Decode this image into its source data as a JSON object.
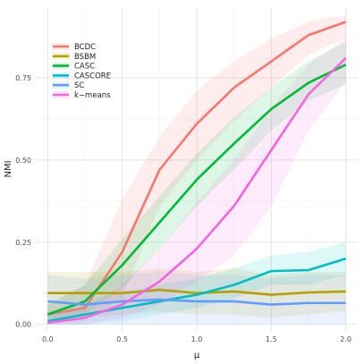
{
  "chart_data": {
    "type": "line",
    "xlabel": "μ",
    "ylabel": "NMI",
    "xlim": [
      -0.08,
      2.08
    ],
    "ylim": [
      -0.02,
      0.965
    ],
    "x_ticks": [
      0.0,
      0.5,
      1.0,
      1.5,
      2.0
    ],
    "x_tick_labels": [
      "0.0",
      "0.5",
      "1.0",
      "1.5",
      "2.0"
    ],
    "y_ticks": [
      0.0,
      0.25,
      0.5,
      0.75
    ],
    "y_tick_labels": [
      "0.00",
      "0.25",
      "0.50",
      "0.75"
    ],
    "grid": true,
    "legend_position": "top-left",
    "x": [
      0,
      0.25,
      0.5,
      0.75,
      1.0,
      1.25,
      1.5,
      1.75,
      2.0
    ],
    "series": [
      {
        "name": "BCDC",
        "color": "#F8766D",
        "values": [
          0.03,
          0.05,
          0.22,
          0.47,
          0.61,
          0.72,
          0.8,
          0.88,
          0.92
        ],
        "lower": [
          0.0,
          0.01,
          0.08,
          0.36,
          0.5,
          0.62,
          0.72,
          0.82,
          0.87
        ],
        "upper": [
          0.06,
          0.12,
          0.38,
          0.57,
          0.71,
          0.8,
          0.87,
          0.92,
          0.94
        ]
      },
      {
        "name": "BSBM",
        "color": "#B79F00",
        "values": [
          0.095,
          0.095,
          0.095,
          0.105,
          0.095,
          0.1,
          0.09,
          0.097,
          0.1
        ],
        "lower": [
          0.02,
          0.02,
          0.03,
          0.04,
          0.03,
          0.03,
          0.02,
          0.03,
          0.04
        ],
        "upper": [
          0.16,
          0.16,
          0.16,
          0.17,
          0.16,
          0.17,
          0.15,
          0.16,
          0.16
        ]
      },
      {
        "name": "CASC",
        "color": "#00BA38",
        "values": [
          0.03,
          0.07,
          0.18,
          0.31,
          0.44,
          0.55,
          0.655,
          0.735,
          0.79
        ],
        "lower": [
          0.0,
          0.03,
          0.11,
          0.23,
          0.36,
          0.47,
          0.59,
          0.68,
          0.73
        ],
        "upper": [
          0.06,
          0.12,
          0.26,
          0.39,
          0.52,
          0.63,
          0.72,
          0.8,
          0.86
        ]
      },
      {
        "name": "CASCORE",
        "color": "#00BFC4",
        "values": [
          0.01,
          0.03,
          0.05,
          0.07,
          0.09,
          0.12,
          0.162,
          0.165,
          0.2
        ],
        "lower": [
          0.0,
          0.0,
          0.01,
          0.03,
          0.05,
          0.08,
          0.12,
          0.12,
          0.15
        ],
        "upper": [
          0.04,
          0.07,
          0.1,
          0.12,
          0.14,
          0.17,
          0.21,
          0.22,
          0.25
        ]
      },
      {
        "name": "SC",
        "color": "#619CFF",
        "values": [
          0.07,
          0.06,
          0.07,
          0.075,
          0.07,
          0.07,
          0.06,
          0.065,
          0.065
        ],
        "lower": [
          0.0,
          0.0,
          0.0,
          0.0,
          0.0,
          0.0,
          0.0,
          0.0,
          0.0
        ],
        "upper": [
          0.15,
          0.14,
          0.15,
          0.16,
          0.15,
          0.15,
          0.14,
          0.15,
          0.15
        ]
      },
      {
        "name": "k−means",
        "color": "#F564E3",
        "values": [
          0.005,
          0.02,
          0.06,
          0.13,
          0.23,
          0.36,
          0.53,
          0.7,
          0.81
        ],
        "lower": [
          0.0,
          0.0,
          0.02,
          0.06,
          0.13,
          0.21,
          0.36,
          0.59,
          0.74
        ],
        "upper": [
          0.02,
          0.05,
          0.12,
          0.23,
          0.37,
          0.5,
          0.66,
          0.79,
          0.87
        ]
      }
    ]
  }
}
